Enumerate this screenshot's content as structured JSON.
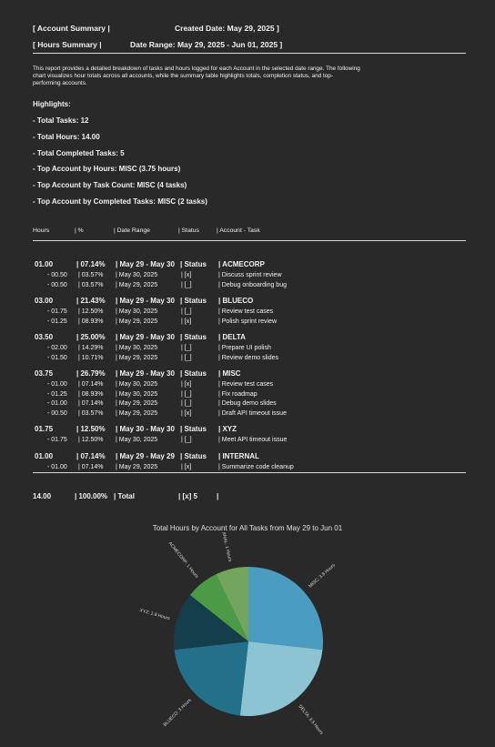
{
  "header": {
    "row1_left": "[    Account Summary    |",
    "row1_right": "Created Date: May 29, 2025   ]",
    "row2_left": "[    Hours Summary     |",
    "row2_right": "Date Range: May 29, 2025 - Jun 01, 2025   ]"
  },
  "intro": "This report provides a detailed breakdown of tasks and hours logged for each Account in the selected date range. The following chart visualizes hour totals across all accounts, while the summary table highlights totals, completion status, and top-performing accounts.",
  "highlights": {
    "title": "Highlights:",
    "items": [
      "- Total Tasks: 12",
      "- Total Hours: 14.00",
      "- Total Completed Tasks: 5",
      "- Top Account by Hours: MISC (3.75 hours)",
      "- Top Account by Task Count: MISC (4 tasks)",
      "- Top Account by Completed Tasks: MISC (2 tasks)"
    ]
  },
  "table": {
    "headers": [
      "Hours",
      "| %",
      "| Date Range",
      "| Status",
      "| Account - Task"
    ],
    "groups": [
      {
        "hours": "01.00",
        "pct": "| 07.14%",
        "range": "| May 29 - May 30",
        "status": "| Status",
        "account": "| ACMECORP",
        "tasks": [
          {
            "hours": "- 00.50",
            "pct": "| 03.57%",
            "date": "| May 30, 2025",
            "status": "| [x]",
            "task": "| Discuss sprint review"
          },
          {
            "hours": "- 00.50",
            "pct": "| 03.57%",
            "date": "| May 29, 2025",
            "status": "| [_]",
            "task": "| Debug onboarding bug"
          }
        ]
      },
      {
        "hours": "03.00",
        "pct": "| 21.43%",
        "range": "| May 29 - May 30",
        "status": "| Status",
        "account": "| BLUECO",
        "tasks": [
          {
            "hours": "- 01.75",
            "pct": "| 12.50%",
            "date": "| May 30, 2025",
            "status": "| [_]",
            "task": "| Review test cases"
          },
          {
            "hours": "- 01.25",
            "pct": "| 08.93%",
            "date": "| May 29, 2025",
            "status": "| [x]",
            "task": "| Polish sprint review"
          }
        ]
      },
      {
        "hours": "03.50",
        "pct": "| 25.00%",
        "range": "| May 29 - May 30",
        "status": "| Status",
        "account": "| DELTA",
        "tasks": [
          {
            "hours": "- 02.00",
            "pct": "| 14.29%",
            "date": "| May 30, 2025",
            "status": "| [_]",
            "task": "| Prepare UI polish"
          },
          {
            "hours": "- 01.50",
            "pct": "| 10.71%",
            "date": "| May 29, 2025",
            "status": "| [_]",
            "task": "| Review demo slides"
          }
        ]
      },
      {
        "hours": "03.75",
        "pct": "| 26.79%",
        "range": "| May 29 - May 30",
        "status": "| Status",
        "account": "| MISC",
        "tasks": [
          {
            "hours": "- 01.00",
            "pct": "| 07.14%",
            "date": "| May 30, 2025",
            "status": "| [x]",
            "task": "| Review test cases"
          },
          {
            "hours": "- 01.25",
            "pct": "| 08.93%",
            "date": "| May 30, 2025",
            "status": "| [_]",
            "task": "| Fix roadmap"
          },
          {
            "hours": "- 01.00",
            "pct": "| 07.14%",
            "date": "| May 29, 2025",
            "status": "| [_]",
            "task": "| Debug demo slides"
          },
          {
            "hours": "- 00.50",
            "pct": "| 03.57%",
            "date": "| May 29, 2025",
            "status": "| [x]",
            "task": "| Draft API timeout issue"
          }
        ]
      },
      {
        "hours": "01.75",
        "pct": "| 12.50%",
        "range": "| May 30 - May 30",
        "status": "| Status",
        "account": "| XYZ",
        "tasks": [
          {
            "hours": "- 01.75",
            "pct": "| 12.50%",
            "date": "| May 30, 2025",
            "status": "| [_]",
            "task": "| Meet API timeout issue"
          }
        ]
      },
      {
        "hours": "01.00",
        "pct": "| 07.14%",
        "range": "| May 29 - May 29",
        "status": "| Status",
        "account": "| INTERNAL",
        "tasks": [
          {
            "hours": "- 01.00",
            "pct": "| 07.14%",
            "date": "| May 29, 2025",
            "status": "| [x]",
            "task": "| Summarize code cleanup"
          }
        ]
      }
    ],
    "total": {
      "hours": "14.00",
      "pct": "| 100.00%",
      "label": "| Total",
      "status": "| [x] 5",
      "end": "|"
    }
  },
  "chart_data": {
    "type": "pie",
    "title": "Total Hours by Account for All Tasks from May 29 to Jun 01",
    "slices": [
      {
        "label": "MISC: 3.8 Hours",
        "value": 3.75,
        "color": "#4a9dc0"
      },
      {
        "label": "DELTA: 3.5 Hours",
        "value": 3.5,
        "color": "#8cc4d4"
      },
      {
        "label": "BLUECO: 3 Hours",
        "value": 3.0,
        "color": "#22708a"
      },
      {
        "label": "XYZ: 1.8 Hours",
        "value": 1.75,
        "color": "#143e4c"
      },
      {
        "label": "ACMECORP: 1 Hours",
        "value": 1.0,
        "color": "#4b9a45"
      },
      {
        "label": "INTERNAL: 1 Hours",
        "value": 1.0,
        "color": "#72a45e"
      }
    ]
  }
}
